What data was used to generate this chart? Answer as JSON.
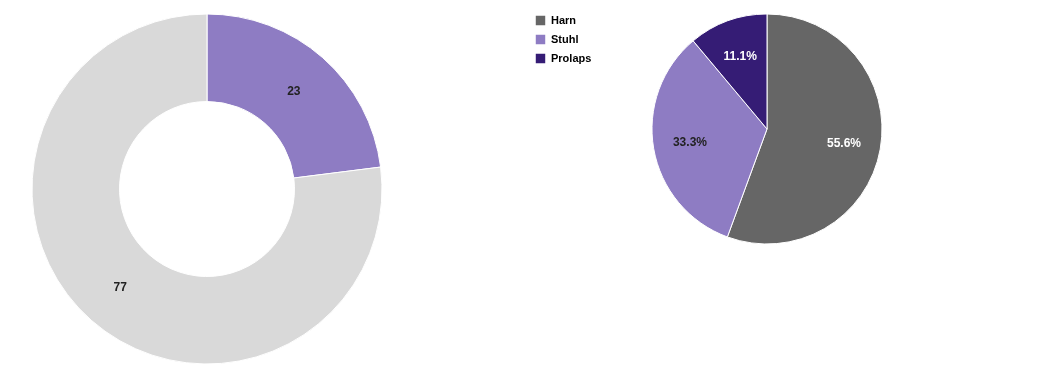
{
  "chart_data": [
    {
      "type": "donut",
      "categories": [
        null,
        null
      ],
      "values": [
        23,
        77
      ],
      "colors": [
        "#8e7cc3",
        "#d9d9d9"
      ],
      "data_labels": true
    },
    {
      "type": "pie",
      "categories": [
        "Harn",
        "Stuhl",
        "Prolaps"
      ],
      "values": [
        55.6,
        33.3,
        11.1
      ],
      "colors": [
        "#666666",
        "#8e7cc3",
        "#351c75"
      ],
      "value_labels": [
        "55.6%",
        "33.3%",
        "11.1%"
      ],
      "legend": "left"
    }
  ]
}
